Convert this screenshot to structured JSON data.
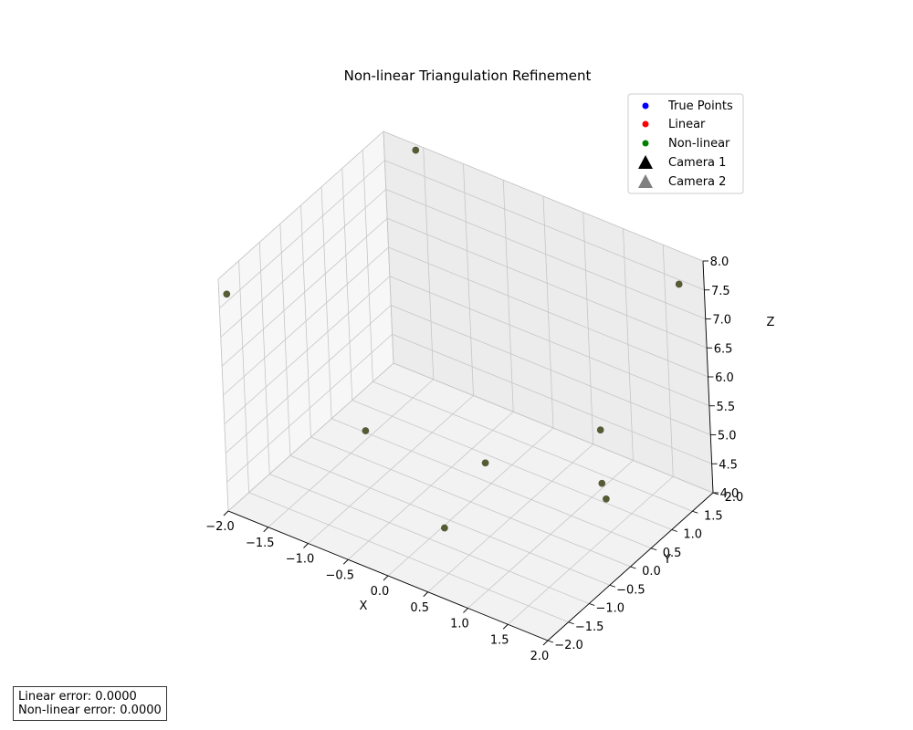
{
  "chart_data": {
    "type": "scatter",
    "title": "Non-linear Triangulation Refinement",
    "xlabel": "X",
    "ylabel": "Y",
    "zlabel": "Z",
    "xlim": [
      -2,
      2
    ],
    "ylim": [
      -2,
      2
    ],
    "zlim": [
      4,
      8
    ],
    "x_ticks": [
      "−2.0",
      "−1.5",
      "−1.0",
      "−0.5",
      "0.0",
      "0.5",
      "1.0",
      "1.5",
      "2.0"
    ],
    "y_ticks": [
      "−2.0",
      "−1.5",
      "−1.0",
      "−0.5",
      "0.0",
      "0.5",
      "1.0",
      "1.5",
      "2.0"
    ],
    "z_ticks": [
      "4.0",
      "4.5",
      "5.0",
      "5.5",
      "6.0",
      "6.5",
      "7.0",
      "7.5",
      "8.0"
    ],
    "grid": true,
    "legend_position": "top-right",
    "series": [
      {
        "name": "True Points",
        "color": "#0000ff",
        "marker": "circle",
        "points": [
          {
            "x": -1.9,
            "y": -2.0,
            "z": 7.8
          },
          {
            "x": -1.6,
            "y": 2.0,
            "z": 7.9
          },
          {
            "x": 1.9,
            "y": 1.6,
            "z": 7.8
          },
          {
            "x": 0.6,
            "y": 2.0,
            "z": 4.3
          },
          {
            "x": -1.3,
            "y": 0.0,
            "z": 4.5
          },
          {
            "x": 0.1,
            "y": 0.2,
            "z": 4.6
          },
          {
            "x": 0.2,
            "y": -1.0,
            "z": 4.3
          },
          {
            "x": 1.3,
            "y": 0.7,
            "z": 4.6
          },
          {
            "x": 1.4,
            "y": 0.6,
            "z": 4.45
          }
        ]
      },
      {
        "name": "Linear",
        "color": "#ff0000",
        "marker": "circle",
        "points": [
          {
            "x": -1.9,
            "y": -2.0,
            "z": 7.8
          },
          {
            "x": -1.6,
            "y": 2.0,
            "z": 7.9
          },
          {
            "x": 1.9,
            "y": 1.6,
            "z": 7.8
          },
          {
            "x": 0.6,
            "y": 2.0,
            "z": 4.3
          },
          {
            "x": -1.3,
            "y": 0.0,
            "z": 4.5
          },
          {
            "x": 0.1,
            "y": 0.2,
            "z": 4.6
          },
          {
            "x": 0.2,
            "y": -1.0,
            "z": 4.3
          },
          {
            "x": 1.3,
            "y": 0.7,
            "z": 4.6
          },
          {
            "x": 1.4,
            "y": 0.6,
            "z": 4.45
          }
        ]
      },
      {
        "name": "Non-linear",
        "color": "#008000",
        "marker": "circle",
        "points": [
          {
            "x": -1.9,
            "y": -2.0,
            "z": 7.8
          },
          {
            "x": -1.6,
            "y": 2.0,
            "z": 7.9
          },
          {
            "x": 1.9,
            "y": 1.6,
            "z": 7.8
          },
          {
            "x": 0.6,
            "y": 2.0,
            "z": 4.3
          },
          {
            "x": -1.3,
            "y": 0.0,
            "z": 4.5
          },
          {
            "x": 0.1,
            "y": 0.2,
            "z": 4.6
          },
          {
            "x": 0.2,
            "y": -1.0,
            "z": 4.3
          },
          {
            "x": 1.3,
            "y": 0.7,
            "z": 4.6
          },
          {
            "x": 1.4,
            "y": 0.6,
            "z": 4.45
          }
        ]
      },
      {
        "name": "Camera 1",
        "color": "#000000",
        "marker": "triangle",
        "points": []
      },
      {
        "name": "Camera 2",
        "color": "#808080",
        "marker": "triangle",
        "points": []
      }
    ]
  },
  "annotation": {
    "linear_error": "Linear error: 0.0000",
    "nonlinear_error": "Non-linear error: 0.0000"
  }
}
